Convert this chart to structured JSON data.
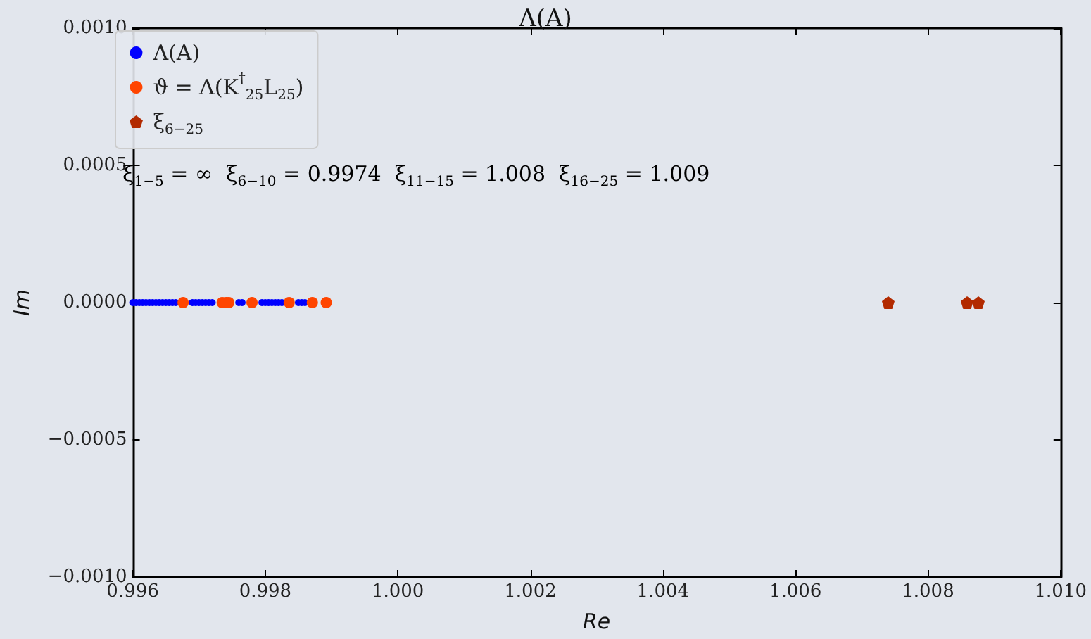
{
  "chart_data": {
    "type": "scatter",
    "title": "Λ(A)",
    "xlabel": "Re",
    "ylabel": "Im",
    "xlim": [
      0.996,
      1.01
    ],
    "ylim": [
      -0.001,
      0.001
    ],
    "xticks": [
      {
        "value": 0.996,
        "label": "0.996"
      },
      {
        "value": 0.998,
        "label": "0.998"
      },
      {
        "value": 1.0,
        "label": "1.000"
      },
      {
        "value": 1.002,
        "label": "1.002"
      },
      {
        "value": 1.004,
        "label": "1.004"
      },
      {
        "value": 1.006,
        "label": "1.006"
      },
      {
        "value": 1.008,
        "label": "1.008"
      },
      {
        "value": 1.01,
        "label": "1.010"
      }
    ],
    "yticks": [
      {
        "value": -0.001,
        "label": "−0.0010"
      },
      {
        "value": -0.0005,
        "label": "−0.0005"
      },
      {
        "value": 0,
        "label": "0.0000"
      },
      {
        "value": 0.0005,
        "label": "0.0005"
      },
      {
        "value": 0.001,
        "label": "0.0010"
      }
    ],
    "grid": false,
    "legend": "top left",
    "annotations": [
      "ξ$_{1−5}$ = ∞  ξ$_{6−10}$ = 0.9974  ξ$_{11−15}$ = 1.008  ξ$_{16−25}$ = 1.009"
    ],
    "series": [
      {
        "name": "Λ(A)",
        "color": "#0000ff",
        "marker": "circle",
        "x": [
          0.996,
          0.99605,
          0.9961,
          0.99615,
          0.9962,
          0.99625,
          0.9963,
          0.99635,
          0.9964,
          0.99645,
          0.9965,
          0.99655,
          0.9966,
          0.99665,
          0.9969,
          0.99695,
          0.997,
          0.99705,
          0.9971,
          0.99715,
          0.9972,
          0.9976,
          0.99765,
          0.99795,
          0.998,
          0.99805,
          0.9981,
          0.99815,
          0.9982,
          0.99825,
          0.9985,
          0.99855,
          0.9986
        ],
        "values": [
          0,
          0,
          0,
          0,
          0,
          0,
          0,
          0,
          0,
          0,
          0,
          0,
          0,
          0,
          0,
          0,
          0,
          0,
          0,
          0,
          0,
          0,
          0,
          0,
          0,
          0,
          0,
          0,
          0,
          0,
          0,
          0,
          0
        ]
      },
      {
        "name": "ϑ = Λ(K$^{†}$$_{25}$L$_{25}$)",
        "color": "#ff4500",
        "marker": "circle",
        "x": [
          0.99676,
          0.99735,
          0.99741,
          0.99745,
          0.9978,
          0.99836,
          0.99871,
          0.99892
        ],
        "values": [
          0,
          0,
          0,
          0,
          0,
          0,
          0,
          0
        ]
      },
      {
        "name": "ξ$_{6−25}$",
        "color": "#b22a00",
        "x": [
          1.0074,
          1.00859,
          1.00876
        ],
        "values": [
          0,
          0,
          0
        ]
      }
    ]
  }
}
